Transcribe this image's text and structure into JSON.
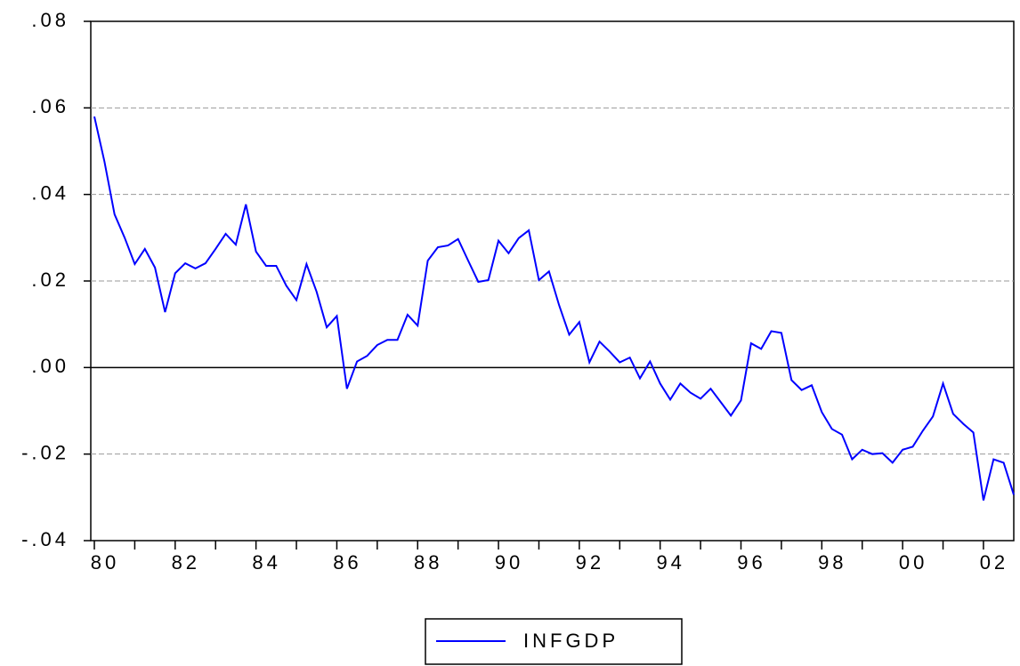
{
  "chart_data": {
    "type": "line",
    "categories": [
      "80",
      null,
      null,
      null,
      null,
      null,
      null,
      null,
      "82",
      null,
      null,
      null,
      null,
      null,
      null,
      null,
      "84",
      null,
      null,
      null,
      null,
      null,
      null,
      null,
      "86",
      null,
      null,
      null,
      null,
      null,
      null,
      null,
      "88",
      null,
      null,
      null,
      null,
      null,
      null,
      null,
      "90",
      null,
      null,
      null,
      null,
      null,
      null,
      null,
      "92",
      null,
      null,
      null,
      null,
      null,
      null,
      null,
      "94",
      null,
      null,
      null,
      null,
      null,
      null,
      null,
      "96",
      null,
      null,
      null,
      null,
      null,
      null,
      null,
      "98",
      null,
      null,
      null,
      null,
      null,
      null,
      null,
      "00",
      null,
      null,
      null,
      null,
      null,
      null,
      null,
      "02",
      null,
      null,
      null
    ],
    "series": [
      {
        "name": "INFGDP",
        "color": "#0000ff",
        "values": [
          0.058,
          0.0476,
          0.0354,
          0.03,
          0.0239,
          0.0274,
          0.0231,
          0.0128,
          0.0218,
          0.0241,
          0.0229,
          0.0241,
          0.0274,
          0.0309,
          0.0284,
          0.0377,
          0.0268,
          0.0235,
          0.0235,
          0.0189,
          0.0156,
          0.0239,
          0.0175,
          0.0093,
          0.0119,
          -0.0049,
          0.0014,
          0.0027,
          0.0052,
          0.0064,
          0.0064,
          0.0122,
          0.0097,
          0.0247,
          0.0278,
          0.0282,
          0.0297,
          0.0247,
          0.0198,
          0.0202,
          0.0293,
          0.0264,
          0.0299,
          0.0317,
          0.0202,
          0.0222,
          0.0144,
          0.0076,
          0.0105,
          0.0012,
          0.006,
          0.0037,
          0.0012,
          0.0023,
          -0.0025,
          0.0014,
          -0.0037,
          -0.0074,
          -0.0037,
          -0.0058,
          -0.0072,
          -0.0049,
          -0.008,
          -0.0111,
          -0.0076,
          0.0056,
          0.0043,
          0.0084,
          0.008,
          -0.0029,
          -0.0052,
          -0.0041,
          -0.0103,
          -0.0142,
          -0.0155,
          -0.0212,
          -0.019,
          -0.02,
          -0.0198,
          -0.022,
          -0.019,
          -0.0183,
          -0.0146,
          -0.0113,
          -0.0037,
          -0.0107,
          -0.013,
          -0.015,
          -0.0307,
          -0.0212,
          -0.022,
          -0.0294
        ]
      }
    ],
    "ylim": [
      -0.04,
      0.08
    ],
    "yticks": [
      {
        "value": -0.04,
        "label": "-.04"
      },
      {
        "value": -0.02,
        "label": "-.02"
      },
      {
        "value": 0,
        "label": ".00"
      },
      {
        "value": 0.02,
        "label": ".02"
      },
      {
        "value": 0.04,
        "label": ".04"
      },
      {
        "value": 0.06,
        "label": ".06"
      },
      {
        "value": 0.08,
        "label": ".08"
      }
    ],
    "grid": true,
    "legend": "bottom"
  }
}
